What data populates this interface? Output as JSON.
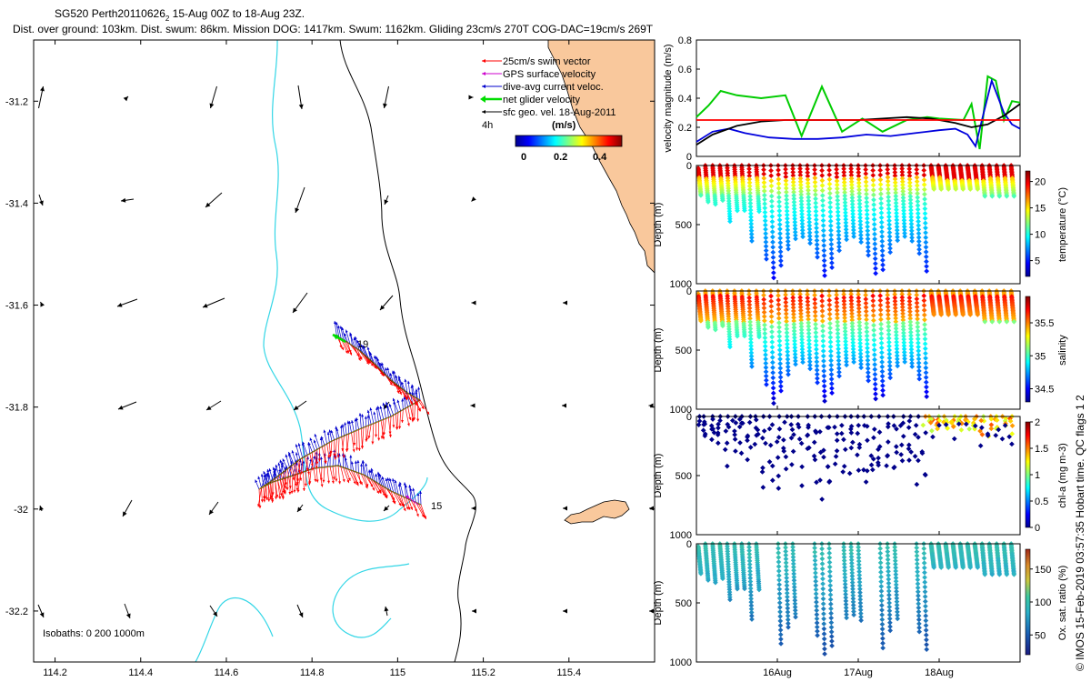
{
  "header": {
    "line1": "SG520 Perth20110626",
    "line1_sub": "2",
    "line1_rest": " 15-Aug 00Z to 18-Aug 23Z.",
    "line2": "Dist. over ground: 103km. Dist. swum: 86km. Mission DOG: 1417km. Swum: 1162km. Gliding 23cm/s 270T COG-DAC=19cm/s 269T"
  },
  "credit": "© IMOS 15-Feb-2019 03:57:35 Hobart time. QC flags 1  2",
  "colors": {
    "land": "#f9c89c",
    "isobath200": "#33d6e6",
    "isobath1000": "#000000",
    "swim": "#ff0000",
    "gps": "#cc00cc",
    "dac": "#0000cc",
    "net": "#00dd00",
    "sfc": "#000000"
  },
  "map": {
    "xticks": [
      "114.2",
      "114.4",
      "114.6",
      "114.8",
      "115",
      "115.2",
      "115.4"
    ],
    "yticks": [
      "-31.2",
      "-31.4",
      "-31.6",
      "-31.8",
      "-32",
      "-32.2"
    ],
    "isobaths_label": "Isobaths: 0   200  1000m",
    "label_start": "19",
    "label_end": "15",
    "legend": {
      "swim": "25cm/s swim vector",
      "gps": "GPS surface velocity",
      "dac": "dive-avg current veloc.",
      "net": "net glider velocity",
      "sfc": "sfc geo. vel. 18-Aug-2011",
      "age": "4h",
      "units": "(m/s)",
      "cbar_ticks": [
        "0",
        "0.2",
        "0.4"
      ]
    }
  },
  "chart_data": [
    {
      "type": "line",
      "title": "",
      "ylabel": "velocity magnitude (m/s)",
      "ylim": [
        0,
        0.8
      ],
      "yticks": [
        "0",
        "0.2",
        "0.4",
        "0.6",
        "0.8"
      ],
      "xlim": [
        15,
        19
      ],
      "series": [
        {
          "name": "net glider velocity",
          "color": "#00cc00",
          "x": [
            15.0,
            15.15,
            15.3,
            15.5,
            15.8,
            16.1,
            16.3,
            16.55,
            16.8,
            17.05,
            17.3,
            17.6,
            17.85,
            18.0,
            18.3,
            18.4,
            18.5,
            18.6,
            18.7,
            18.8,
            18.9,
            19.0
          ],
          "y": [
            0.27,
            0.35,
            0.45,
            0.42,
            0.4,
            0.42,
            0.14,
            0.48,
            0.17,
            0.26,
            0.17,
            0.25,
            0.27,
            0.26,
            0.25,
            0.36,
            0.05,
            0.55,
            0.52,
            0.25,
            0.38,
            0.37
          ]
        },
        {
          "name": "dive-avg current veloc.",
          "color": "#0000dd",
          "x": [
            15.0,
            15.2,
            15.4,
            15.6,
            15.9,
            16.2,
            16.5,
            16.8,
            17.1,
            17.4,
            17.7,
            18.0,
            18.2,
            18.35,
            18.45,
            18.55,
            18.65,
            18.8,
            18.9,
            19.0
          ],
          "y": [
            0.1,
            0.17,
            0.19,
            0.16,
            0.13,
            0.12,
            0.12,
            0.13,
            0.15,
            0.14,
            0.16,
            0.18,
            0.19,
            0.15,
            0.07,
            0.3,
            0.52,
            0.3,
            0.22,
            0.19
          ]
        },
        {
          "name": "sfc geo. vel.",
          "color": "#000000",
          "x": [
            15.0,
            15.2,
            15.5,
            15.8,
            16.1,
            16.4,
            16.7,
            17.0,
            17.3,
            17.6,
            17.9,
            18.2,
            18.4,
            18.6,
            18.8,
            19.0
          ],
          "y": [
            0.08,
            0.15,
            0.21,
            0.24,
            0.25,
            0.25,
            0.25,
            0.25,
            0.26,
            0.27,
            0.26,
            0.23,
            0.2,
            0.22,
            0.28,
            0.36
          ]
        },
        {
          "name": "swim speed",
          "color": "#ff0000",
          "x": [
            15.0,
            19.0
          ],
          "y": [
            0.25,
            0.25
          ]
        }
      ]
    },
    {
      "type": "scatter",
      "variable": "temperature",
      "cbar_label": "temperature (°C)",
      "clim": [
        2,
        22
      ],
      "cbar_ticks": [
        "5",
        "10",
        "15",
        "20"
      ],
      "ylabel": "Depth (m)",
      "ylim": [
        0,
        1000
      ],
      "yticks": [
        "0",
        "500",
        "1000"
      ]
    },
    {
      "type": "scatter",
      "variable": "salinity",
      "cbar_label": "salinity",
      "clim": [
        34.3,
        35.9
      ],
      "cbar_ticks": [
        "34.5",
        "35",
        "35.5"
      ],
      "ylabel": "Depth (m)",
      "ylim": [
        0,
        1000
      ],
      "yticks": [
        "0",
        "500",
        "1000"
      ]
    },
    {
      "type": "scatter",
      "variable": "chl-a",
      "cbar_label": "chl-a (mg m-3)",
      "clim": [
        0,
        2
      ],
      "cbar_ticks": [
        "0",
        "0.5",
        "1",
        "1.5",
        "2"
      ],
      "ylabel": "Depth (m)",
      "ylim": [
        0,
        1000
      ],
      "yticks": [
        "0",
        "500",
        "1000"
      ]
    },
    {
      "type": "scatter",
      "variable": "oxygen saturation",
      "cbar_label": "Ox. sat. ratio (%)",
      "clim": [
        20,
        180
      ],
      "cbar_ticks": [
        "50",
        "100",
        "150"
      ],
      "ylabel": "Depth (m)",
      "ylim": [
        0,
        1000
      ],
      "yticks": [
        "0",
        "500",
        "1000"
      ],
      "xticks": [
        "16Aug",
        "17Aug",
        "18Aug"
      ]
    }
  ]
}
